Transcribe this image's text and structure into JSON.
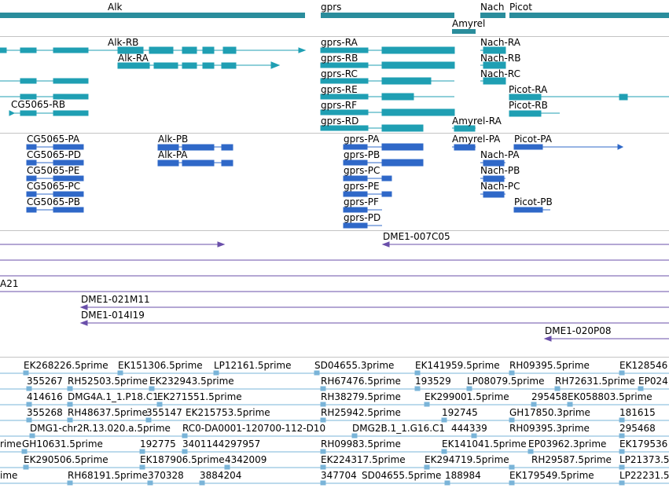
{
  "colors": {
    "gene": "#2a8d9c",
    "transcript_a": "#1f9fb3",
    "transcript_b": "#2f68c8",
    "clone": "#6a4faa",
    "est": "#7ab4d8",
    "separator": "#c4c4c4"
  },
  "tracks": {
    "genes": {
      "labels": [
        "Alk",
        "gprs",
        "Nach",
        "Picot",
        "Amyrel"
      ]
    },
    "transcripts_top": {
      "labels": [
        "Alk-RB",
        "Alk-RA",
        "CG5065-RB",
        "gprs-RA",
        "gprs-RB",
        "gprs-RC",
        "gprs-RE",
        "gprs-RF",
        "gprs-RD",
        "Nach-RA",
        "Nach-RB",
        "Nach-RC",
        "Picot-RA",
        "Picot-RB",
        "Amyrel-RA"
      ]
    },
    "transcripts_bottom": {
      "labels": [
        "CG5065-PA",
        "CG5065-PD",
        "CG5065-PE",
        "CG5065-PC",
        "CG5065-PB",
        "Alk-PB",
        "Alk-PA",
        "gprs-PA",
        "gprs-PB",
        "gprs-PC",
        "gprs-PE",
        "gprs-PF",
        "gprs-PD",
        "Amyrel-PA",
        "Nach-PA",
        "Nach-PB",
        "Nach-PC",
        "Picot-PA",
        "Picot-PB"
      ]
    },
    "clones": {
      "labels": [
        "DME1-007C05",
        "A21",
        "DME1-021M11",
        "DME1-014I19",
        "DME1-020P08"
      ]
    },
    "ests": {
      "labels": [
        "EK268226.5prime",
        "EK151306.5prime",
        "LP12161.5prime",
        "SD04655.3prime",
        "EK141959.5prime",
        "RH09395.5prime",
        "EK128546",
        "355267",
        "RH52503.5prime",
        "EK232943.5prime",
        "RH67476.5prime",
        "193529",
        "LP08079.5prime",
        "RH72631.5prime",
        "EP024",
        "414616",
        "DMG4A.1_1.P18.C1",
        "EK271551.5prime",
        "RH38279.5prime",
        "EK299001.5prime",
        "295458",
        "EK058803.5prime",
        "355268",
        "RH48637.5prime",
        "355147",
        "EK215753.5prime",
        "RH25942.5prime",
        "192745",
        "GH17850.3prime",
        "181615",
        "DMG1-chr2R.13.020.a.5prime",
        "RC0-DA0001-120700-112-D10",
        "DMG2B.1_1.G16.C1",
        "444339",
        "RH09395.3prime",
        "295468",
        "rime",
        "GH10631.5prime",
        "192775",
        "3401144297957",
        "RH09983.5prime",
        "EK141041.5prime",
        "EP03962.3prime",
        "EK179536",
        "EK290506.5prime",
        "EK187906.5prime",
        "4342009",
        "EK224317.5prime",
        "EK294719.5prime",
        "RH29587.5prime",
        "LP21373.5",
        "ime",
        "RH68191.5prime",
        "370328",
        "3884204",
        "347704",
        "SD04655.5prime",
        "188984",
        "EK179549.5prime",
        "LP22231.5"
      ]
    }
  }
}
